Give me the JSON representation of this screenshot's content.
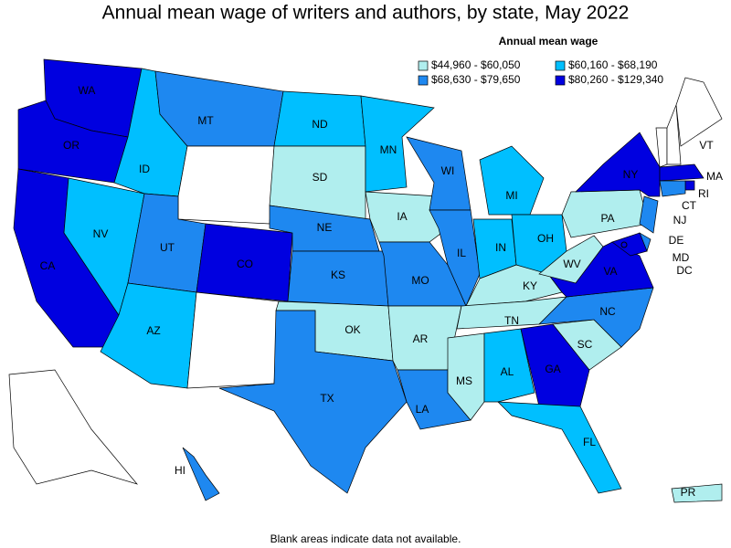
{
  "title": "Annual mean wage of writers and authors, by state, May 2022",
  "legend": {
    "title": "Annual mean wage",
    "classes": [
      {
        "label": "$44,960 - $60,050",
        "color": "#b0eeee"
      },
      {
        "label": "$60,160 - $68,190",
        "color": "#00bfff"
      },
      {
        "label": "$68,630 - $79,650",
        "color": "#1e88f0"
      },
      {
        "label": "$80,260 - $129,340",
        "color": "#0000e0"
      }
    ]
  },
  "states": [
    {
      "label": "WA",
      "color": "#0000e0"
    },
    {
      "label": "OR",
      "color": "#0000e0"
    },
    {
      "label": "CA",
      "color": "#0000e0"
    },
    {
      "label": "NV",
      "color": "#00bfff"
    },
    {
      "label": "ID",
      "color": "#00bfff"
    },
    {
      "label": "MT",
      "color": "#1e88f0"
    },
    {
      "label": null,
      "color": "#ffffff"
    },
    {
      "label": "UT",
      "color": "#1e88f0"
    },
    {
      "label": "AZ",
      "color": "#00bfff"
    },
    {
      "label": "CO",
      "color": "#0000e0"
    },
    {
      "label": null,
      "color": "#ffffff"
    },
    {
      "label": "ND",
      "color": "#00bfff"
    },
    {
      "label": "SD",
      "color": "#b0eeee"
    },
    {
      "label": "NE",
      "color": "#1e88f0"
    },
    {
      "label": "KS",
      "color": "#1e88f0"
    },
    {
      "label": "OK",
      "color": "#b0eeee"
    },
    {
      "label": "TX",
      "color": "#1e88f0"
    },
    {
      "label": "MN",
      "color": "#00bfff"
    },
    {
      "label": "IA",
      "color": "#b0eeee"
    },
    {
      "label": "MO",
      "color": "#1e88f0"
    },
    {
      "label": "AR",
      "color": "#b0eeee"
    },
    {
      "label": "LA",
      "color": "#1e88f0"
    },
    {
      "label": "WI",
      "color": "#1e88f0"
    },
    {
      "label": "IL",
      "color": "#1e88f0"
    },
    {
      "label": "MI",
      "color": "#00bfff"
    },
    {
      "label": "IN",
      "color": "#00bfff"
    },
    {
      "label": "OH",
      "color": "#00bfff"
    },
    {
      "label": "KY",
      "color": "#b0eeee"
    },
    {
      "label": "TN",
      "color": "#b0eeee"
    },
    {
      "label": "MS",
      "color": "#b0eeee"
    },
    {
      "label": "AL",
      "color": "#00bfff"
    },
    {
      "label": "GA",
      "color": "#0000e0"
    },
    {
      "label": "FL",
      "color": "#00bfff"
    },
    {
      "label": "SC",
      "color": "#b0eeee"
    },
    {
      "label": "NC",
      "color": "#1e88f0"
    },
    {
      "label": "VA",
      "color": "#0000e0"
    },
    {
      "label": "WV",
      "color": "#b0eeee"
    },
    {
      "label": "PA",
      "color": "#b0eeee"
    },
    {
      "label": "NY",
      "color": "#0000e0"
    },
    {
      "label": "VT",
      "color": "#ffffff"
    },
    {
      "label": null,
      "color": "#ffffff"
    },
    {
      "label": null,
      "color": "#ffffff"
    },
    {
      "label": "MA",
      "color": "#0000e0"
    },
    {
      "label": "RI",
      "color": "#0000e0"
    },
    {
      "label": "CT",
      "color": "#1e88f0"
    },
    {
      "label": "NJ",
      "color": "#1e88f0"
    },
    {
      "label": "DE",
      "color": "#1e88f0"
    },
    {
      "label": "MD",
      "color": "#0000e0"
    },
    {
      "label": "DC",
      "color": "#0000e0"
    },
    {
      "label": null,
      "color": "#ffffff"
    },
    {
      "label": "HI",
      "color": "#1e88f0"
    },
    {
      "label": "PR",
      "color": "#b0eeee"
    }
  ],
  "note": "Blank areas indicate data not available."
}
